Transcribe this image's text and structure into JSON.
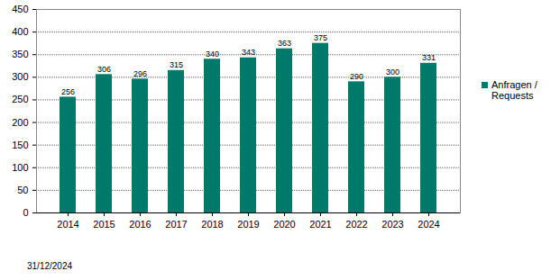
{
  "chart_data": {
    "type": "bar",
    "categories": [
      "2014",
      "2015",
      "2016",
      "2017",
      "2018",
      "2019",
      "2020",
      "2021",
      "2022",
      "2023",
      "2024"
    ],
    "series": [
      {
        "name": "Anfragen / Requests",
        "color": "#00796b",
        "values": [
          256,
          306,
          296,
          315,
          340,
          343,
          363,
          375,
          290,
          300,
          331
        ]
      }
    ],
    "ylim": [
      0,
      450
    ],
    "yticks": [
      0,
      50,
      100,
      150,
      200,
      250,
      300,
      350,
      400,
      450
    ],
    "grid": true,
    "data_labels": true,
    "legend": "right",
    "annotations": [
      "31/12/2024"
    ]
  }
}
